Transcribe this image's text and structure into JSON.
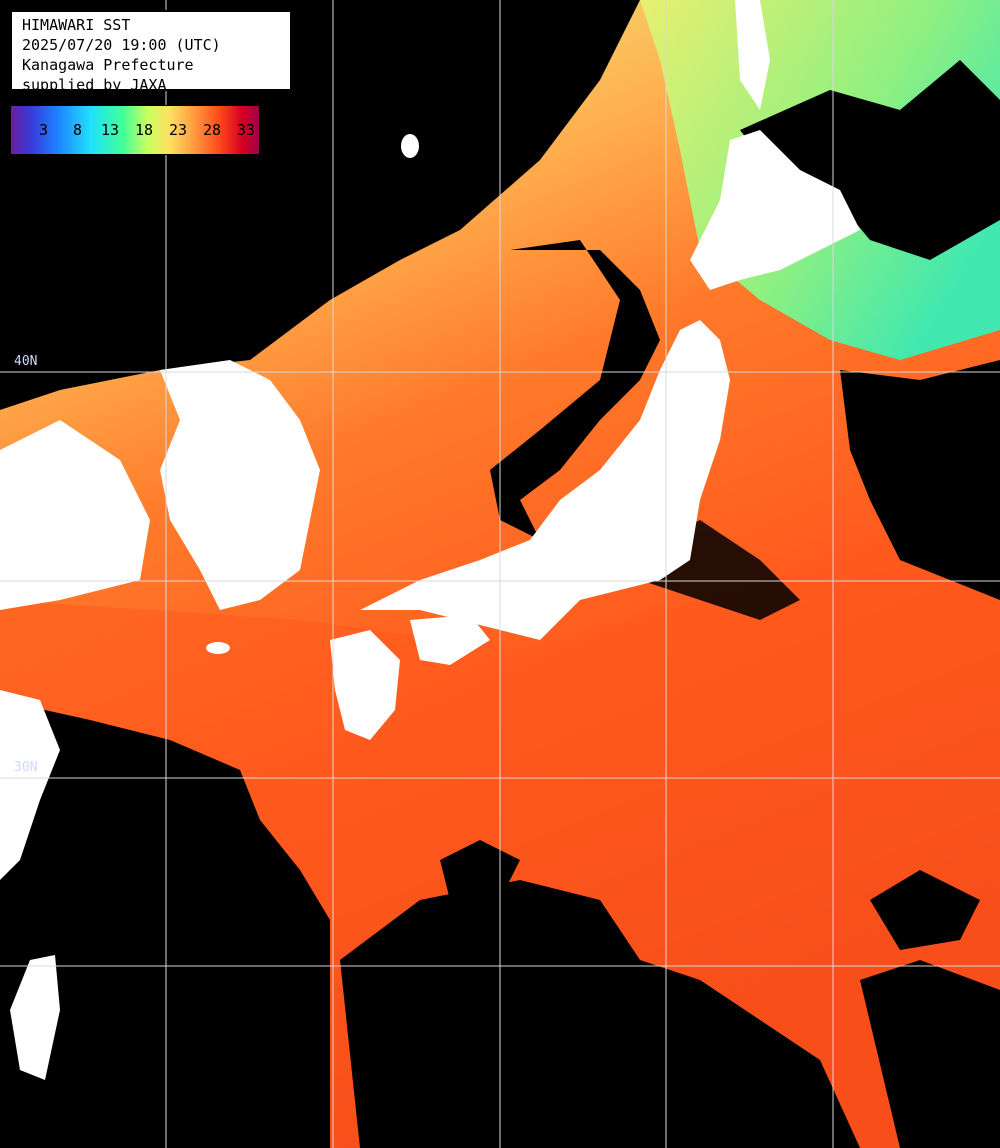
{
  "title_box": {
    "line1": "HIMAWARI SST",
    "line2": "2025/07/20 19:00 (UTC)",
    "line3": "Kanagawa Prefecture",
    "line4": "supplied by JAXA"
  },
  "legend": {
    "ticks": [
      "3",
      "8",
      "13",
      "18",
      "23",
      "28",
      "33"
    ],
    "colors": [
      "#6a1fa0",
      "#1f7cff",
      "#20e0ff",
      "#40ff9a",
      "#ffe060",
      "#ff4a1a",
      "#a0004a"
    ]
  },
  "grid": {
    "lat_labels": [
      "40N",
      "30N"
    ]
  },
  "colors": {
    "land": "#ffffff",
    "cloud": "#000000",
    "grid": "#d9d9d9",
    "warm_sea": "#ff5a1e",
    "mid_sea": "#ffa040",
    "cool_sea": "#e8e070",
    "cold_sea": "#60f0a0"
  }
}
